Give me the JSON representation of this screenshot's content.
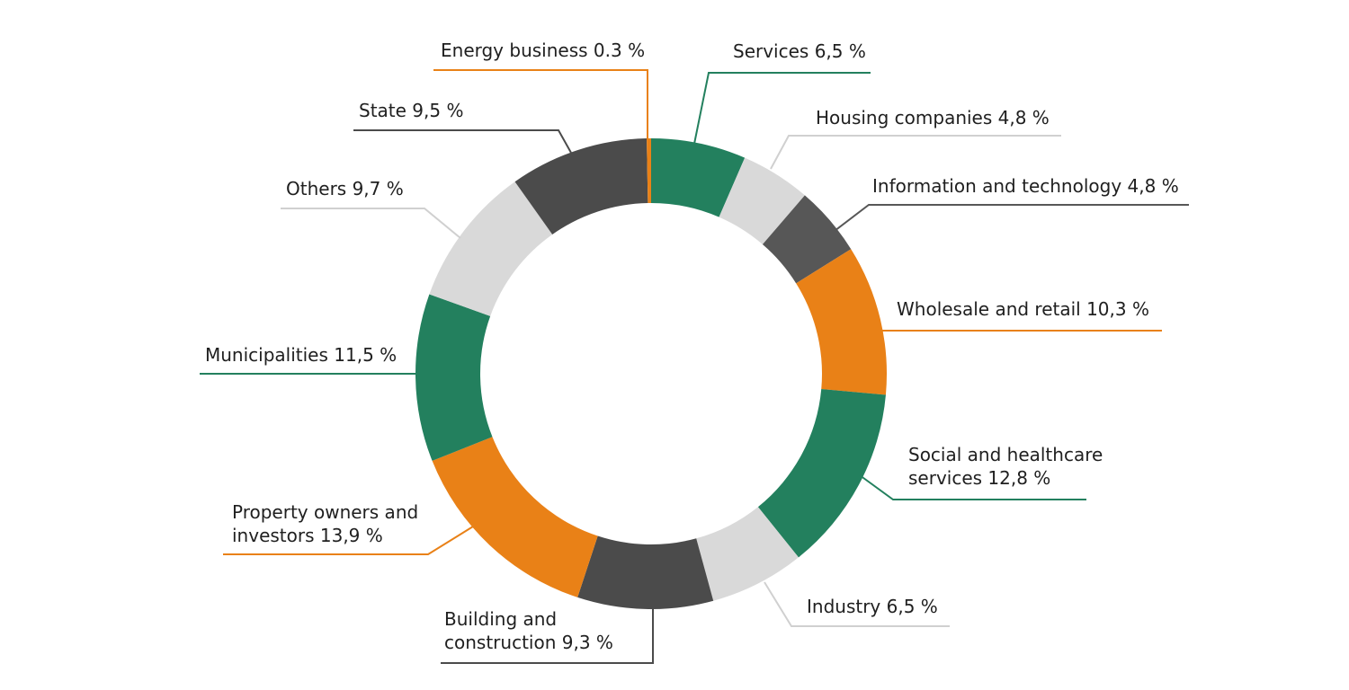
{
  "chart_data": {
    "type": "pie",
    "variant": "donut",
    "title": "",
    "start": "top",
    "direction": "clockwise",
    "slices": [
      {
        "name": "Services",
        "value": 6.5,
        "color": "#23805e",
        "label_lines": [
          "Services 6,5 %"
        ]
      },
      {
        "name": "Housing companies",
        "value": 4.8,
        "color": "#d9d9d9",
        "label_lines": [
          "Housing companies 4,8 %"
        ]
      },
      {
        "name": "Information and technology",
        "value": 4.8,
        "color": "#575757",
        "label_lines": [
          "Information and technology 4,8 %"
        ]
      },
      {
        "name": "Wholesale and retail",
        "value": 10.3,
        "color": "#e98117",
        "label_lines": [
          "Wholesale and retail 10,3 %"
        ]
      },
      {
        "name": "Social and healthcare services",
        "value": 12.8,
        "color": "#23805e",
        "label_lines": [
          "Social and healthcare",
          "services 12,8 %"
        ]
      },
      {
        "name": "Industry",
        "value": 6.5,
        "color": "#d9d9d9",
        "label_lines": [
          "Industry 6,5 %"
        ]
      },
      {
        "name": "Building and construction",
        "value": 9.3,
        "color": "#4b4b4b",
        "label_lines": [
          "Building and",
          "construction 9,3 %"
        ]
      },
      {
        "name": "Property owners and investors",
        "value": 13.9,
        "color": "#e98117",
        "label_lines": [
          "Property owners and",
          "investors 13,9 %"
        ]
      },
      {
        "name": "Municipalities",
        "value": 11.5,
        "color": "#23805e",
        "label_lines": [
          "Municipalities 11,5 %"
        ]
      },
      {
        "name": "Others",
        "value": 9.7,
        "color": "#d9d9d9",
        "label_lines": [
          "Others 9,7 %"
        ]
      },
      {
        "name": "State",
        "value": 9.5,
        "color": "#4b4b4b",
        "label_lines": [
          "State 9,5 %"
        ]
      },
      {
        "name": "Energy business",
        "value": 0.3,
        "color": "#e98117",
        "label_lines": [
          "Energy business 0.3 %"
        ]
      }
    ]
  }
}
